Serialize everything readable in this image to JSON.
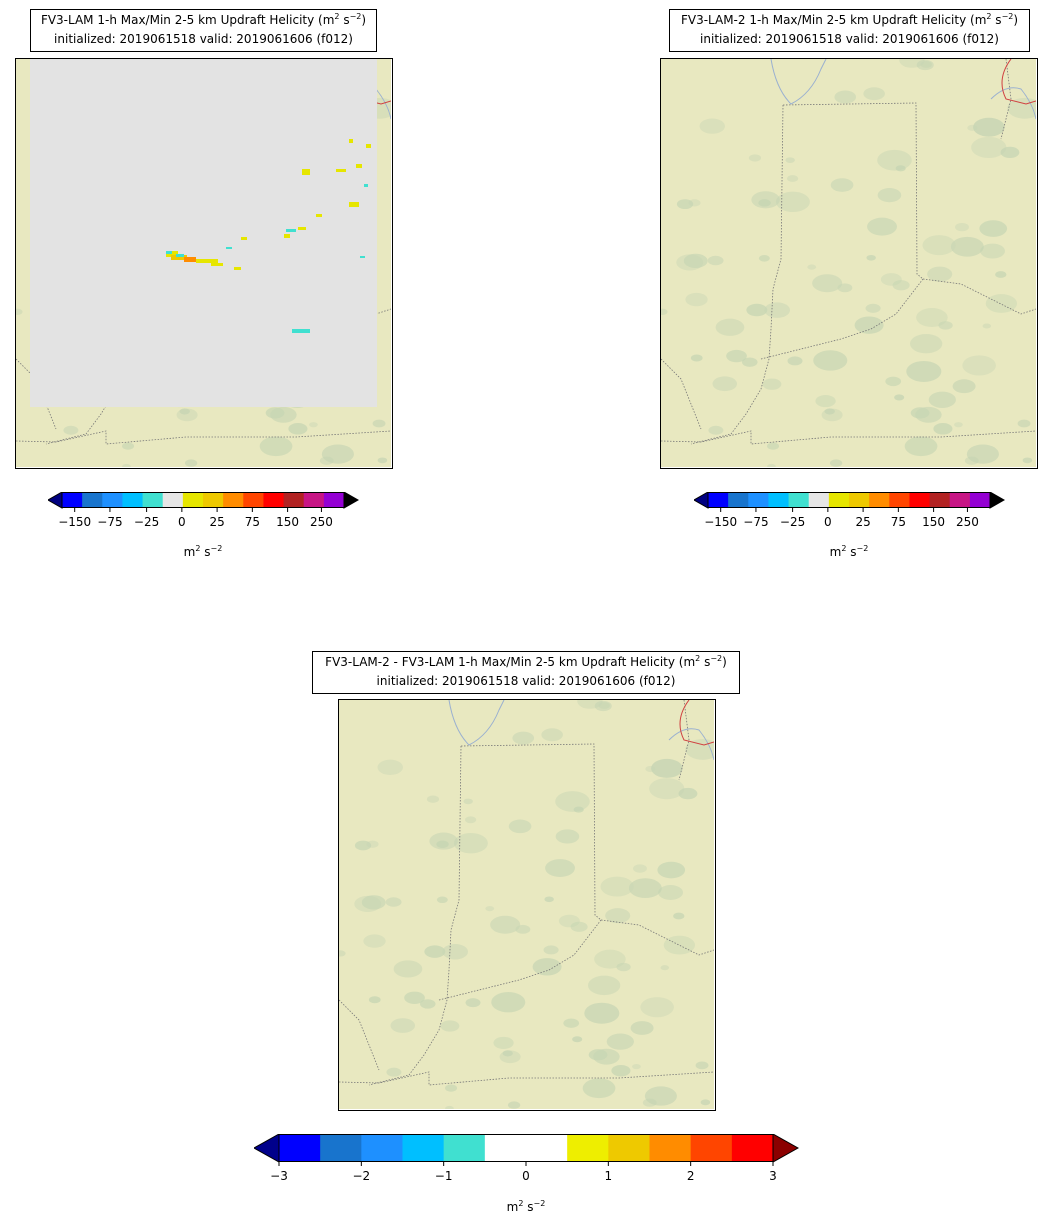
{
  "panels": [
    {
      "id": "top-left",
      "title_line1": "FV3-LAM 1-h Max/Min 2-5 km Updraft Helicity (m",
      "title_sup1": "2",
      "title_mid": " s",
      "title_sup2": "−2",
      "title_end": ")",
      "title_line2": "initialized: 2019061518 valid: 2019061606 (f012)",
      "has_overlay": true
    },
    {
      "id": "top-right",
      "title_line1": "FV3-LAM-2 1-h Max/Min 2-5 km Updraft Helicity (m",
      "title_sup1": "2",
      "title_mid": " s",
      "title_sup2": "−2",
      "title_end": ")",
      "title_line2": "initialized: 2019061518 valid: 2019061606 (f012)",
      "has_overlay": false
    },
    {
      "id": "bottom",
      "title_line1": "FV3-LAM-2 - FV3-LAM 1-h Max/Min 2-5 km Updraft Helicity (m",
      "title_sup1": "2",
      "title_mid": " s",
      "title_sup2": "−2",
      "title_end": ")",
      "title_line2": "initialized: 2019061518 valid: 2019061606 (f012)",
      "has_overlay": false
    }
  ],
  "colorbar_uh": {
    "tick_labels": [
      "−150",
      "−75",
      "−25",
      "0",
      "25",
      "75",
      "150",
      "250"
    ],
    "unit_base": "m",
    "unit_sup1": "2",
    "unit_mid": " s",
    "unit_sup2": "−2",
    "colors": [
      "#0000ff",
      "#1874cd",
      "#1e90ff",
      "#00bfff",
      "#40e0d0",
      "#e6e6e6",
      "#e6e600",
      "#eec900",
      "#ff8c00",
      "#ff4500",
      "#ff0000",
      "#b22222",
      "#c71585",
      "#9400d3"
    ],
    "under_color": "#000080",
    "over_color": "#000000"
  },
  "colorbar_diff": {
    "tick_labels": [
      "−3",
      "−2",
      "−1",
      "0",
      "1",
      "2",
      "3"
    ],
    "unit_base": "m",
    "unit_sup1": "2",
    "unit_mid": " s",
    "unit_sup2": "−2",
    "colors": [
      "#0000ff",
      "#1874cd",
      "#1e90ff",
      "#00bfff",
      "#40e0d0",
      "#ffffff",
      "#ffffff",
      "#eeee00",
      "#eec900",
      "#ff8c00",
      "#ff4500",
      "#ff0000"
    ],
    "under_color": "#00008b",
    "over_color": "#8b0000"
  },
  "map_colors": {
    "land": "#e8e8c0",
    "terrain_dark": "#a8c4a8",
    "missing_overlay": "#e3e3e3",
    "state_line": "#777777",
    "water": "#9ab0d0",
    "country_line": "#d04040"
  }
}
